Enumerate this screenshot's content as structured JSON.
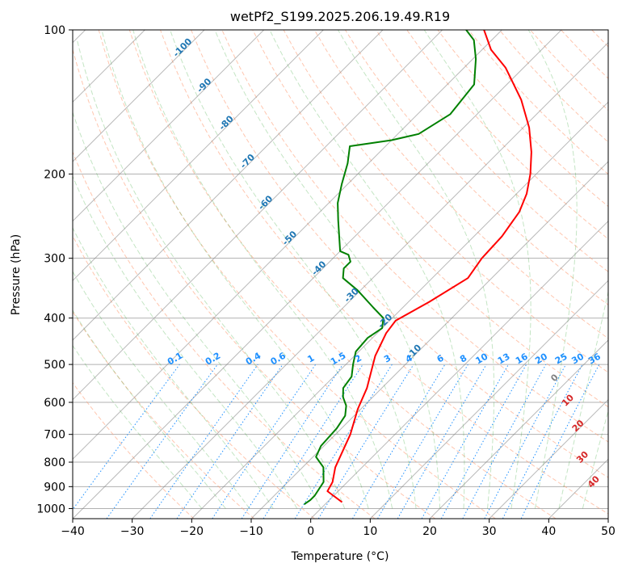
{
  "chart_data": {
    "type": "line",
    "title": "wetPf2_S199.2025.206.19.49.R19",
    "xlabel": "Temperature (°C)",
    "ylabel": "Pressure (hPa)",
    "xlim": [
      -40,
      50
    ],
    "ylim": [
      1050,
      100
    ],
    "y_scale": "log",
    "x_ticks": [
      -40,
      -30,
      -20,
      -10,
      0,
      10,
      20,
      30,
      40,
      50
    ],
    "y_ticks": [
      1000,
      900,
      800,
      700,
      600,
      500,
      400,
      300,
      200,
      100
    ],
    "grid": true,
    "series": [
      {
        "role": "temperature",
        "color": "#ff0000",
        "points": [
          {
            "p": 970,
            "t": 2.5
          },
          {
            "p": 920,
            "t": -1.8
          },
          {
            "p": 880,
            "t": -2.5
          },
          {
            "p": 820,
            "t": -4.5
          },
          {
            "p": 700,
            "t": -7.5
          },
          {
            "p": 620,
            "t": -10.5
          },
          {
            "p": 560,
            "t": -12.5
          },
          {
            "p": 480,
            "t": -16.5
          },
          {
            "p": 430,
            "t": -18.5
          },
          {
            "p": 405,
            "t": -19.0
          },
          {
            "p": 370,
            "t": -16.5
          },
          {
            "p": 330,
            "t": -14.0
          },
          {
            "p": 300,
            "t": -15.0
          },
          {
            "p": 270,
            "t": -15.3
          },
          {
            "p": 240,
            "t": -16.5
          },
          {
            "p": 220,
            "t": -18.3
          },
          {
            "p": 200,
            "t": -21.0
          },
          {
            "p": 180,
            "t": -24.5
          },
          {
            "p": 160,
            "t": -29.0
          },
          {
            "p": 140,
            "t": -35.0
          },
          {
            "p": 120,
            "t": -43.0
          },
          {
            "p": 110,
            "t": -48.5
          },
          {
            "p": 100,
            "t": -53.0
          }
        ]
      },
      {
        "role": "dewpoint",
        "color": "#008000",
        "points": [
          {
            "p": 980,
            "t": -3.5
          },
          {
            "p": 960,
            "t": -3.2
          },
          {
            "p": 940,
            "t": -3.2
          },
          {
            "p": 880,
            "t": -4.0
          },
          {
            "p": 820,
            "t": -6.5
          },
          {
            "p": 780,
            "t": -9.5
          },
          {
            "p": 740,
            "t": -10.5
          },
          {
            "p": 680,
            "t": -10.8
          },
          {
            "p": 640,
            "t": -11.5
          },
          {
            "p": 610,
            "t": -13.0
          },
          {
            "p": 585,
            "t": -15.0
          },
          {
            "p": 560,
            "t": -16.5
          },
          {
            "p": 530,
            "t": -17.0
          },
          {
            "p": 500,
            "t": -18.8
          },
          {
            "p": 470,
            "t": -20.5
          },
          {
            "p": 440,
            "t": -20.8
          },
          {
            "p": 420,
            "t": -20.0
          },
          {
            "p": 400,
            "t": -21.5
          },
          {
            "p": 380,
            "t": -25.0
          },
          {
            "p": 350,
            "t": -30.5
          },
          {
            "p": 330,
            "t": -35.0
          },
          {
            "p": 315,
            "t": -36.5
          },
          {
            "p": 305,
            "t": -36.5
          },
          {
            "p": 295,
            "t": -38.0
          },
          {
            "p": 290,
            "t": -40.0
          },
          {
            "p": 250,
            "t": -45.5
          },
          {
            "p": 230,
            "t": -48.5
          },
          {
            "p": 210,
            "t": -51.0
          },
          {
            "p": 190,
            "t": -53.5
          },
          {
            "p": 175,
            "t": -56.0
          },
          {
            "p": 170,
            "t": -50.0
          },
          {
            "p": 165,
            "t": -46.5
          },
          {
            "p": 150,
            "t": -44.5
          },
          {
            "p": 130,
            "t": -45.5
          },
          {
            "p": 115,
            "t": -49.5
          },
          {
            "p": 105,
            "t": -53.0
          },
          {
            "p": 100,
            "t": -56.0
          }
        ]
      }
    ],
    "isotherm_labels": [
      "-100",
      "-90",
      "-80",
      "-70",
      "-60",
      "-50",
      "-40",
      "-30",
      "-20",
      "-10"
    ],
    "mixing_ratio_labels": [
      "0.1",
      "0.2",
      "0.4",
      "0.6",
      "1",
      "1.5",
      "2",
      "3",
      "4",
      "6",
      "8",
      "10",
      "13",
      "16",
      "20",
      "25",
      "30",
      "36"
    ],
    "moist_adiabat_labels": [
      "0",
      "10",
      "20",
      "30",
      "40"
    ],
    "colors": {
      "isotherm": "#808080",
      "isotherm_label": "#1f77b4",
      "dry_adiabat": "#ffa07a",
      "moist_adiabat": "#2ca02c",
      "mixing_ratio": "#1e90ff",
      "moist_label_zero": "#808080",
      "moist_label": "#d62728"
    }
  }
}
